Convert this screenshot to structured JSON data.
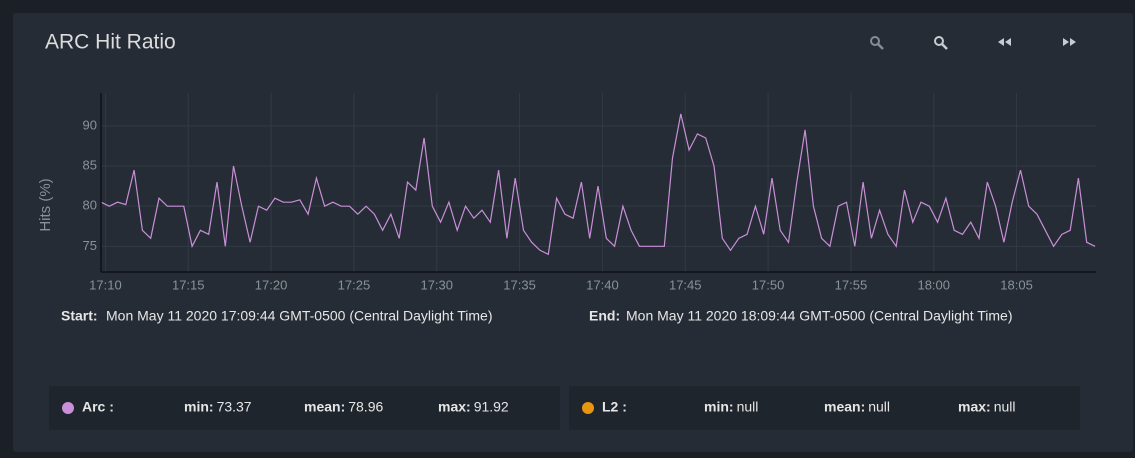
{
  "header": {
    "title": "ARC Hit Ratio"
  },
  "chart_data": {
    "type": "line",
    "y_label": "Hits (%)",
    "x": [
      "17:09:44",
      "17:10:14",
      "17:10:44",
      "17:11:14",
      "17:11:44",
      "17:12:14",
      "17:12:44",
      "17:13:14",
      "17:13:44",
      "17:14:14",
      "17:14:44",
      "17:15:14",
      "17:15:44",
      "17:16:14",
      "17:16:44",
      "17:17:14",
      "17:17:44",
      "17:18:14",
      "17:18:44",
      "17:19:14",
      "17:19:44",
      "17:20:14",
      "17:20:44",
      "17:21:14",
      "17:21:44",
      "17:22:14",
      "17:22:44",
      "17:23:14",
      "17:23:44",
      "17:24:14",
      "17:24:44",
      "17:25:14",
      "17:25:44",
      "17:26:14",
      "17:26:44",
      "17:27:14",
      "17:27:44",
      "17:28:14",
      "17:28:44",
      "17:29:14",
      "17:29:44",
      "17:30:14",
      "17:30:44",
      "17:31:14",
      "17:31:44",
      "17:32:14",
      "17:32:44",
      "17:33:14",
      "17:33:44",
      "17:34:14",
      "17:34:44",
      "17:35:14",
      "17:35:44",
      "17:36:14",
      "17:36:44",
      "17:37:14",
      "17:37:44",
      "17:38:14",
      "17:38:44",
      "17:39:14",
      "17:39:44",
      "17:40:14",
      "17:40:44",
      "17:41:14",
      "17:41:44",
      "17:42:14",
      "17:42:44",
      "17:43:14",
      "17:43:44",
      "17:44:14",
      "17:44:44",
      "17:45:14",
      "17:45:44",
      "17:46:14",
      "17:46:44",
      "17:47:14",
      "17:47:44",
      "17:48:14",
      "17:48:44",
      "17:49:14",
      "17:49:44",
      "17:50:14",
      "17:50:44",
      "17:51:14",
      "17:51:44",
      "17:52:14",
      "17:52:44",
      "17:53:14",
      "17:53:44",
      "17:54:14",
      "17:54:44",
      "17:55:14",
      "17:55:44",
      "17:56:14",
      "17:56:44",
      "17:57:14",
      "17:57:44",
      "17:58:14",
      "17:58:44",
      "17:59:14",
      "17:59:44",
      "18:00:14",
      "18:00:44",
      "18:01:14",
      "18:01:44",
      "18:02:14",
      "18:02:44",
      "18:03:14",
      "18:03:44",
      "18:04:14",
      "18:04:44",
      "18:05:14",
      "18:05:44",
      "18:06:14",
      "18:06:44",
      "18:07:14",
      "18:07:44",
      "18:08:14",
      "18:08:44",
      "18:09:14",
      "18:09:44"
    ],
    "series": [
      {
        "name": "Arc :",
        "color": "#c98fd8",
        "values": [
          80.5,
          80,
          80.5,
          80.2,
          84.5,
          77,
          76,
          81,
          80,
          80,
          80,
          75,
          77,
          76.5,
          83,
          75,
          85,
          80,
          75.5,
          80,
          79.5,
          81,
          80.5,
          80.5,
          80.8,
          79,
          83.5,
          80,
          80.5,
          80,
          80,
          79,
          80,
          79,
          77,
          79,
          76,
          83,
          82,
          88.5,
          80,
          78,
          80.5,
          77,
          80,
          78.5,
          79.5,
          78,
          84.5,
          76,
          83.5,
          77,
          75.5,
          74.5,
          74,
          81,
          79,
          78.5,
          83,
          76,
          82.5,
          76,
          75,
          80,
          77,
          75,
          75,
          75,
          75,
          86,
          91.5,
          87,
          89,
          88.5,
          85,
          76,
          74.5,
          76,
          76.5,
          80,
          76.5,
          83.5,
          77,
          75.5,
          83,
          89.5,
          80,
          76,
          75,
          80,
          80.5,
          75,
          83,
          76,
          79.5,
          76.5,
          75,
          82,
          78,
          80.5,
          80,
          78,
          81,
          77,
          76.5,
          78,
          76,
          83,
          80,
          75.5,
          80.5,
          84.5,
          80,
          79,
          77,
          75,
          76.5,
          77,
          83.5,
          75.5,
          75
        ]
      }
    ],
    "xlim": [
      "17:09:44",
      "18:09:44"
    ],
    "xticks": [
      {
        "value": "17:10:00",
        "label": "17:10"
      },
      {
        "value": "17:15:00",
        "label": "17:15"
      },
      {
        "value": "17:20:00",
        "label": "17:20"
      },
      {
        "value": "17:25:00",
        "label": "17:25"
      },
      {
        "value": "17:30:00",
        "label": "17:30"
      },
      {
        "value": "17:35:00",
        "label": "17:35"
      },
      {
        "value": "17:40:00",
        "label": "17:40"
      },
      {
        "value": "17:45:00",
        "label": "17:45"
      },
      {
        "value": "17:50:00",
        "label": "17:50"
      },
      {
        "value": "17:55:00",
        "label": "17:55"
      },
      {
        "value": "18:00:00",
        "label": "18:00"
      },
      {
        "value": "18:05:00",
        "label": "18:05"
      }
    ],
    "ylim": [
      71.8,
      94.1
    ],
    "yticks": [
      75,
      80,
      85,
      90
    ],
    "grid": true
  },
  "range": {
    "start_label": "Start:",
    "start": "Mon May 11 2020 17:09:44 GMT-0500 (Central Daylight Time)",
    "end_label": "End:",
    "end": "Mon May 11 2020 18:09:44 GMT-0500 (Central Daylight Time)"
  },
  "stats": [
    {
      "min_label": "min:",
      "min": 73.37,
      "mean_label": "mean:",
      "mean": 78.96,
      "max_label": "max:",
      "max": 91.92
    },
    {
      "label": "L2 :",
      "color": "#e8950f",
      "min_label": "min:",
      "min": "null",
      "mean_label": "mean:",
      "mean": "null",
      "max_label": "max:",
      "max": "null"
    }
  ]
}
